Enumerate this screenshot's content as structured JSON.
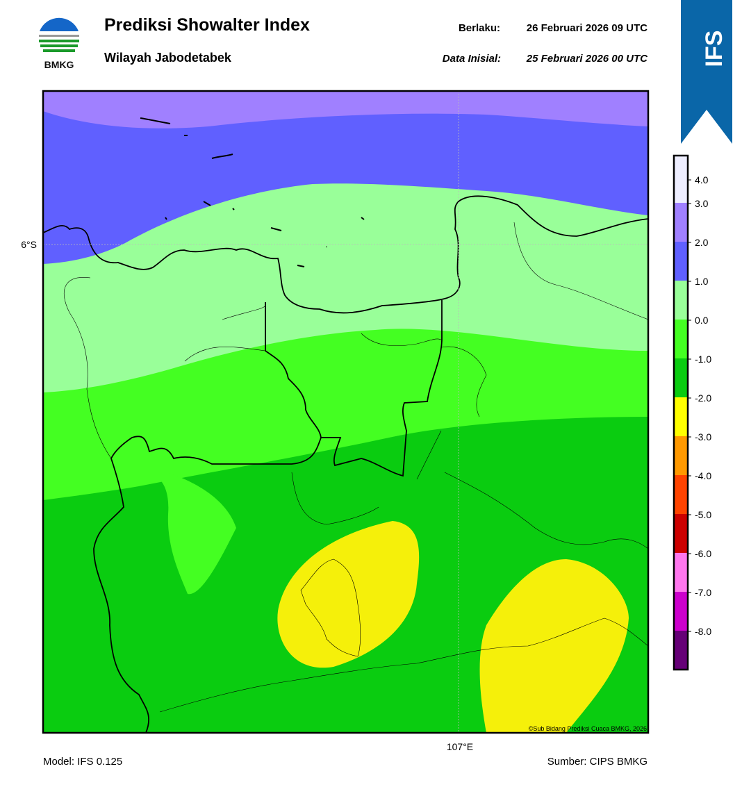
{
  "header": {
    "title": "Prediksi Showalter Index",
    "subtitle": "Wilayah Jabodetabek",
    "valid_label": "Berlaku:",
    "valid_time": "26 Februari 2026 09 UTC",
    "init_label": "Data Inisial:",
    "init_time": "25 Februari 2026 00 UTC",
    "logo_text": "BMKG",
    "model_badge": "IFS"
  },
  "map": {
    "lat_label": "6°S",
    "lon_label": "107°E",
    "credit": "©Sub Bidang Prediksi Cuaca BMKG, 2026"
  },
  "colorbar": {
    "labels": [
      "4.0",
      "3.0",
      "2.0",
      "1.0",
      "0.0",
      "-1.0",
      "-2.0",
      "-3.0",
      "-4.0",
      "-5.0",
      "-6.0",
      "-7.0",
      "-8.0"
    ],
    "colors": [
      "#eeeeff",
      "#a080ff",
      "#6060ff",
      "#99ff99",
      "#44ff22",
      "#0acc10",
      "#ffff00",
      "#ff9900",
      "#ff4400",
      "#cc0000",
      "#ff77ee",
      "#cc00cc",
      "#660077"
    ]
  },
  "footer": {
    "model": "Model: IFS 0.125",
    "source": "Sumber: CIPS BMKG"
  }
}
